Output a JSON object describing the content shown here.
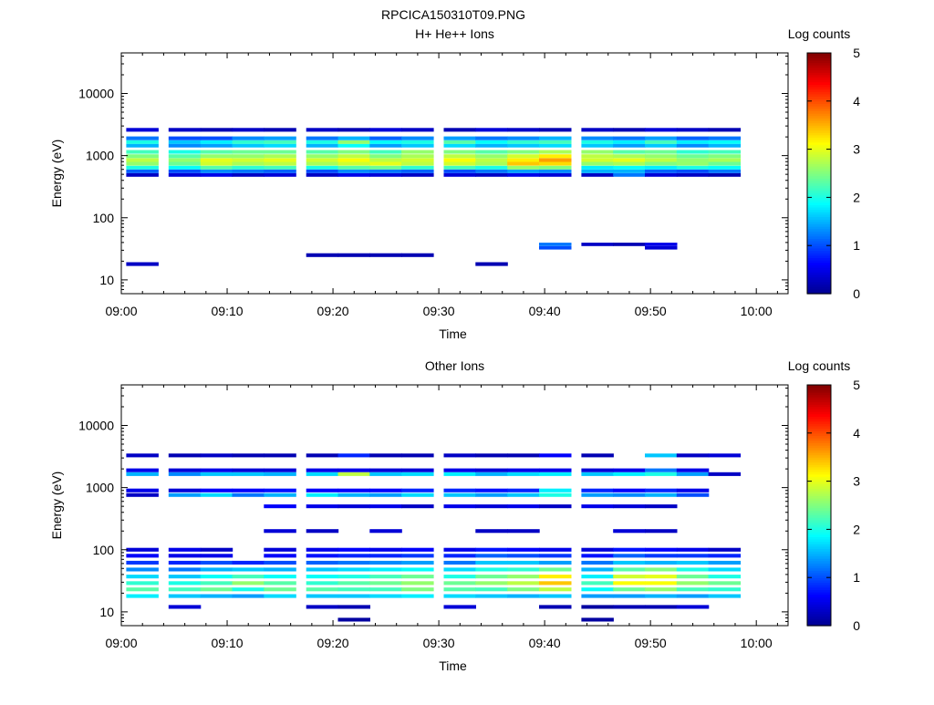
{
  "figure": {
    "title": "RPCICA150310T09.PNG"
  },
  "colorbar": {
    "label": "Log counts",
    "ticks": [
      "0",
      "1",
      "2",
      "3",
      "4",
      "5"
    ],
    "colormap": [
      "#00008f",
      "#0000ff",
      "#0080ff",
      "#00ffff",
      "#80ff80",
      "#ffff00",
      "#ff8000",
      "#ff0000",
      "#800000"
    ]
  },
  "chart_data": [
    {
      "type": "heatmap",
      "title": "H+ He++ Ions",
      "xlabel": "Time",
      "ylabel": "Energy (eV)",
      "y_scale": "log",
      "ylim": [
        6,
        45000
      ],
      "xlim": [
        "09:00",
        "10:03"
      ],
      "x_ticks": [
        "09:00",
        "09:10",
        "09:20",
        "09:30",
        "09:40",
        "09:50",
        "10:00"
      ],
      "y_ticks": [
        "10",
        "100",
        "1000",
        "10000"
      ],
      "clim": [
        0,
        5
      ],
      "time_bins": [
        "09:02",
        "09:06",
        "09:09",
        "09:12",
        "09:15",
        "09:19",
        "09:22",
        "09:25",
        "09:28",
        "09:32",
        "09:35",
        "09:38",
        "09:41",
        "09:45",
        "09:48",
        "09:51",
        "09:54",
        "09:57"
      ],
      "rows": [
        {
          "energy": 2600,
          "values": [
            0.4,
            0.3,
            0.2,
            0.3,
            0.2,
            0.3,
            0.2,
            0.4,
            0.3,
            0.2,
            0.4,
            0.3,
            0.2,
            0.3,
            0.2,
            0.4,
            0.3,
            0.2
          ]
        },
        {
          "energy": 1900,
          "values": [
            1.2,
            1.0,
            1.0,
            1.3,
            1.4,
            1.2,
            1.5,
            1.1,
            1.3,
            1.4,
            1.2,
            1.3,
            1.5,
            1.3,
            1.2,
            1.4,
            1.1,
            1.2
          ]
        },
        {
          "energy": 1650,
          "values": [
            2.0,
            1.6,
            1.8,
            2.1,
            2.2,
            2.0,
            2.6,
            1.9,
            2.0,
            2.3,
            1.9,
            2.1,
            2.2,
            2.0,
            1.8,
            2.2,
            1.8,
            1.9
          ]
        },
        {
          "energy": 1450,
          "values": [
            1.5,
            1.3,
            1.4,
            1.6,
            1.7,
            1.5,
            1.9,
            1.4,
            1.6,
            1.7,
            1.5,
            1.6,
            1.7,
            1.6,
            1.4,
            1.6,
            1.3,
            1.5
          ]
        },
        {
          "energy": 1150,
          "values": [
            2.2,
            2.0,
            2.3,
            2.4,
            2.4,
            2.3,
            2.5,
            2.2,
            2.6,
            2.5,
            2.3,
            2.5,
            2.7,
            2.6,
            2.3,
            2.4,
            2.1,
            2.2
          ]
        },
        {
          "energy": 980,
          "values": [
            2.5,
            2.3,
            2.6,
            2.6,
            2.7,
            2.6,
            2.8,
            2.5,
            2.7,
            2.8,
            2.6,
            2.9,
            3.2,
            2.8,
            2.7,
            2.6,
            2.4,
            2.5
          ]
        },
        {
          "energy": 850,
          "values": [
            2.8,
            2.6,
            3.0,
            2.9,
            3.0,
            2.9,
            3.1,
            2.8,
            2.9,
            3.1,
            2.8,
            3.2,
            3.6,
            2.9,
            3.0,
            2.8,
            2.6,
            2.7
          ]
        },
        {
          "energy": 740,
          "values": [
            2.6,
            2.4,
            2.9,
            2.7,
            2.8,
            2.7,
            2.9,
            3.0,
            2.8,
            2.9,
            2.7,
            3.4,
            3.3,
            2.6,
            2.7,
            2.5,
            2.6,
            2.4
          ]
        },
        {
          "energy": 640,
          "values": [
            2.0,
            1.9,
            2.3,
            2.1,
            2.2,
            2.0,
            2.3,
            2.4,
            2.1,
            2.2,
            2.0,
            2.6,
            2.5,
            1.8,
            1.9,
            1.8,
            2.0,
            1.9
          ]
        },
        {
          "energy": 560,
          "values": [
            1.1,
            1.0,
            1.3,
            1.2,
            1.1,
            1.0,
            1.3,
            1.2,
            1.1,
            1.0,
            1.2,
            1.4,
            1.3,
            1.5,
            1.5,
            1.1,
            1.0,
            1.2
          ]
        },
        {
          "energy": 490,
          "values": [
            0.3,
            0.4,
            0.5,
            0.3,
            0.4,
            0.3,
            0.5,
            0.4,
            0.3,
            0.4,
            0.3,
            0.5,
            0.4,
            0.3,
            1.2,
            0.4,
            0.3,
            0.2
          ]
        },
        {
          "energy": 37,
          "values": [
            0,
            0,
            0,
            0,
            0,
            0,
            0,
            0,
            0,
            0,
            0,
            0,
            1.2,
            0.3,
            0.2,
            0.5,
            0,
            0
          ]
        },
        {
          "energy": 33,
          "values": [
            0,
            0,
            0,
            0,
            0,
            0,
            0,
            0,
            0,
            0,
            0,
            0,
            1.0,
            0,
            0,
            0.4,
            0,
            0
          ]
        },
        {
          "energy": 25,
          "values": [
            0,
            0,
            0,
            0,
            0,
            0.2,
            0.2,
            0.2,
            0.2,
            0,
            0,
            0,
            0,
            0,
            0,
            0,
            0,
            0
          ]
        },
        {
          "energy": 18,
          "values": [
            0.3,
            0,
            0,
            0,
            0,
            0,
            0,
            0,
            0,
            0,
            0.2,
            0,
            0,
            0,
            0,
            0,
            0,
            0
          ]
        }
      ]
    },
    {
      "type": "heatmap",
      "title": "Other Ions",
      "xlabel": "Time",
      "ylabel": "Energy (eV)",
      "y_scale": "log",
      "ylim": [
        6,
        45000
      ],
      "xlim": [
        "09:00",
        "10:03"
      ],
      "x_ticks": [
        "09:00",
        "09:10",
        "09:20",
        "09:30",
        "09:40",
        "09:50",
        "10:00"
      ],
      "y_ticks": [
        "10",
        "100",
        "1000",
        "10000"
      ],
      "clim": [
        0,
        5
      ],
      "time_bins": [
        "09:02",
        "09:06",
        "09:09",
        "09:12",
        "09:15",
        "09:19",
        "09:22",
        "09:25",
        "09:28",
        "09:32",
        "09:35",
        "09:38",
        "09:41",
        "09:45",
        "09:48",
        "09:51",
        "09:54",
        "09:57"
      ],
      "rows": [
        {
          "energy": 3300,
          "values": [
            0.3,
            0.2,
            0.3,
            0.2,
            0.2,
            0.2,
            0.8,
            0.2,
            0.2,
            0.3,
            0.2,
            0.2,
            0.6,
            0.2,
            0,
            1.6,
            0.3,
            0.4
          ]
        },
        {
          "energy": 1900,
          "values": [
            0.5,
            0.4,
            0.5,
            0.4,
            0.4,
            0.5,
            0.5,
            0.4,
            0.4,
            0.5,
            0.4,
            0.5,
            0.5,
            0.4,
            0.5,
            1.2,
            0.5,
            0
          ]
        },
        {
          "energy": 1650,
          "values": [
            1.5,
            1.3,
            1.6,
            1.6,
            1.5,
            1.7,
            2.8,
            1.6,
            1.7,
            1.8,
            1.5,
            1.7,
            1.8,
            1.6,
            1.8,
            2.0,
            1.4,
            0.3
          ]
        },
        {
          "energy": 900,
          "values": [
            0.5,
            0.4,
            0.6,
            0.6,
            0.7,
            0.6,
            0.6,
            0.6,
            0.8,
            0.8,
            0.7,
            0.8,
            1.8,
            0.8,
            0.6,
            0.8,
            0.5,
            0
          ]
        },
        {
          "energy": 760,
          "values": [
            0.3,
            1.4,
            1.7,
            1.2,
            1.5,
            1.8,
            1.5,
            1.4,
            1.7,
            1.6,
            1.4,
            1.6,
            2.0,
            1.4,
            1.3,
            1.5,
            1.0,
            0
          ]
        },
        {
          "energy": 500,
          "values": [
            0,
            0,
            0,
            0,
            0.6,
            0.5,
            0.4,
            0.5,
            0.3,
            0.5,
            0.4,
            0.5,
            0.3,
            0.5,
            0.4,
            0.3,
            0,
            0
          ]
        },
        {
          "energy": 200,
          "values": [
            0,
            0,
            0,
            0,
            0.4,
            0.3,
            0,
            0.4,
            0,
            0,
            0.3,
            0.3,
            0,
            0,
            0.4,
            0.3,
            0,
            0
          ]
        },
        {
          "energy": 100,
          "values": [
            0.4,
            0.5,
            0.3,
            0,
            0.4,
            0.5,
            0.6,
            0.5,
            0.6,
            0.5,
            0.7,
            0.6,
            0.5,
            0.4,
            0.7,
            0.6,
            0.5,
            0.3
          ]
        },
        {
          "energy": 80,
          "values": [
            0.6,
            0.5,
            0.5,
            0,
            0.6,
            0.7,
            0.8,
            0.8,
            0.9,
            0.8,
            1.1,
            1.0,
            0.9,
            0.7,
            1.1,
            0.9,
            0.9,
            0.8
          ]
        },
        {
          "energy": 62,
          "values": [
            0.9,
            0.8,
            1.0,
            0.8,
            1.0,
            1.1,
            1.2,
            1.3,
            1.4,
            1.2,
            1.6,
            1.6,
            1.4,
            1.2,
            1.6,
            1.5,
            1.6,
            1.4
          ]
        },
        {
          "energy": 48,
          "values": [
            1.3,
            1.2,
            1.5,
            1.6,
            1.5,
            1.6,
            1.7,
            1.8,
            1.9,
            1.7,
            2.0,
            2.1,
            2.4,
            1.5,
            2.3,
            2.5,
            2.0,
            1.7
          ]
        },
        {
          "energy": 37,
          "values": [
            1.7,
            1.6,
            1.9,
            2.2,
            1.9,
            1.9,
            2.0,
            2.2,
            2.4,
            2.0,
            2.4,
            2.6,
            3.2,
            1.8,
            2.9,
            3.0,
            2.4,
            2.0
          ]
        },
        {
          "energy": 29,
          "values": [
            2.1,
            2.0,
            2.2,
            2.6,
            2.3,
            2.1,
            2.3,
            2.4,
            2.6,
            2.4,
            2.6,
            2.8,
            3.4,
            2.2,
            3.1,
            3.1,
            2.6,
            2.4
          ]
        },
        {
          "energy": 23,
          "values": [
            2.3,
            2.2,
            2.4,
            2.0,
            2.4,
            2.3,
            2.2,
            2.2,
            2.5,
            2.3,
            2.2,
            2.5,
            2.8,
            1.9,
            2.4,
            2.6,
            2.2,
            2.1
          ]
        },
        {
          "energy": 18,
          "values": [
            1.8,
            1.6,
            1.5,
            1.4,
            1.7,
            1.6,
            1.6,
            1.7,
            1.8,
            1.7,
            1.6,
            1.5,
            1.6,
            1.4,
            1.4,
            1.5,
            1.4,
            1.6
          ]
        },
        {
          "energy": 12,
          "values": [
            0,
            0.4,
            0,
            0,
            0,
            0.3,
            0.2,
            0,
            0,
            0.4,
            0,
            0,
            0.2,
            0.1,
            0.2,
            0.2,
            0.4,
            0
          ]
        },
        {
          "energy": 7.5,
          "values": [
            0,
            0,
            0,
            0,
            0,
            0,
            0.1,
            0,
            0,
            0,
            0,
            0,
            0,
            0.1,
            0,
            0,
            0,
            0
          ]
        }
      ]
    }
  ]
}
